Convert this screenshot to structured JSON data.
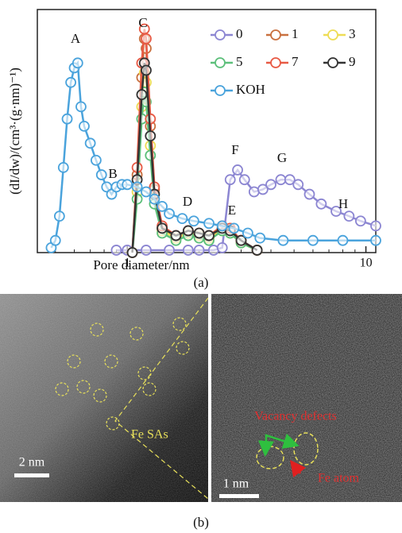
{
  "chart_data": {
    "type": "line",
    "xscale": "log",
    "xlabel": "Pore diameter/nm",
    "ylabel": "(dI/dw)/(cm³·(g·nm)⁻¹)",
    "xlim": [
      0.42,
      11.0
    ],
    "xticks": [
      1,
      10
    ],
    "xminorticks": [
      0.5,
      0.6,
      0.7,
      0.8,
      0.9,
      2,
      3,
      4,
      5,
      6,
      7,
      8,
      9
    ],
    "ylim": [
      0,
      100
    ],
    "annotations": [
      "A",
      "B",
      "C",
      "D",
      "E",
      "F",
      "G",
      "H"
    ],
    "caption": "(a)",
    "series": [
      {
        "name": "0",
        "color": "#8c86d2",
        "x": [
          0.9,
          1.0,
          1.2,
          1.5,
          1.8,
          2.0,
          2.3,
          2.5,
          2.7,
          2.9,
          3.1,
          3.4,
          3.7,
          4.0,
          4.4,
          4.8,
          5.2,
          5.8,
          6.5,
          7.5,
          8.5,
          9.5,
          11.0
        ],
        "values": [
          1,
          1,
          1,
          1,
          1,
          1,
          1,
          2,
          30,
          34,
          30,
          25,
          26,
          28,
          30,
          30,
          28,
          24,
          20,
          17,
          15,
          13,
          11
        ]
      },
      {
        "name": "1",
        "color": "#c9703f",
        "x": [
          1.05,
          1.1,
          1.15,
          1.18,
          1.2,
          1.25,
          1.3,
          1.4,
          1.6,
          1.8,
          2.0,
          2.2,
          2.5,
          2.7,
          3.0,
          3.5
        ],
        "values": [
          0,
          32,
          72,
          88,
          84,
          52,
          26,
          10,
          6,
          8,
          7,
          6,
          10,
          9,
          5,
          1
        ]
      },
      {
        "name": "3",
        "color": "#eedc55",
        "x": [
          1.05,
          1.1,
          1.15,
          1.18,
          1.2,
          1.25,
          1.3,
          1.4,
          1.6,
          1.8,
          2.0,
          2.2,
          2.5,
          2.7,
          3.0,
          3.5
        ],
        "values": [
          0,
          25,
          60,
          74,
          70,
          44,
          22,
          9,
          6,
          8,
          7,
          6,
          9,
          8,
          4,
          1
        ]
      },
      {
        "name": "5",
        "color": "#5cbf7a",
        "x": [
          1.05,
          1.1,
          1.15,
          1.18,
          1.2,
          1.25,
          1.3,
          1.4,
          1.6,
          1.8,
          2.0,
          2.2,
          2.5,
          2.7,
          3.0,
          3.5
        ],
        "values": [
          0,
          22,
          55,
          66,
          62,
          40,
          20,
          8,
          5,
          7,
          6,
          5,
          9,
          8,
          4,
          1
        ]
      },
      {
        "name": "7",
        "color": "#e85a45",
        "x": [
          1.05,
          1.1,
          1.15,
          1.18,
          1.2,
          1.25,
          1.3,
          1.4,
          1.6,
          1.8,
          2.0,
          2.2,
          2.5,
          2.7,
          3.0,
          3.5
        ],
        "values": [
          0,
          35,
          78,
          92,
          88,
          55,
          27,
          11,
          7,
          9,
          8,
          7,
          11,
          10,
          5,
          1
        ]
      },
      {
        "name": "9",
        "color": "#333333",
        "x": [
          1.05,
          1.1,
          1.15,
          1.18,
          1.2,
          1.25,
          1.3,
          1.4,
          1.6,
          1.8,
          2.0,
          2.2,
          2.5,
          2.7,
          3.0,
          3.5
        ],
        "values": [
          0,
          30,
          65,
          78,
          75,
          48,
          24,
          10,
          7,
          9,
          8,
          7,
          10,
          9,
          5,
          1
        ]
      },
      {
        "name": "KOH",
        "color": "#4aa3dc",
        "x": [
          0.48,
          0.5,
          0.52,
          0.54,
          0.56,
          0.58,
          0.6,
          0.62,
          0.64,
          0.66,
          0.7,
          0.74,
          0.78,
          0.82,
          0.86,
          0.9,
          0.95,
          1.0,
          1.1,
          1.2,
          1.3,
          1.4,
          1.5,
          1.7,
          1.9,
          2.2,
          2.5,
          2.8,
          3.2,
          3.6,
          4.5,
          6.0,
          8.0,
          11.0
        ],
        "values": [
          2,
          5,
          15,
          35,
          55,
          70,
          76,
          78,
          60,
          52,
          45,
          38,
          32,
          27,
          24,
          27,
          28,
          28,
          27,
          25,
          22,
          19,
          16,
          14,
          13,
          12,
          11,
          10,
          8,
          6,
          5,
          5,
          5,
          5
        ]
      }
    ]
  },
  "figure": {
    "caption": "(b)",
    "scale_bar_left": "2 nm",
    "scale_bar_right": "1 nm",
    "label_fe_sas": "Fe SAs",
    "label_vacancy": "Vacancy defects",
    "label_fe_atom": "Fe atom"
  }
}
